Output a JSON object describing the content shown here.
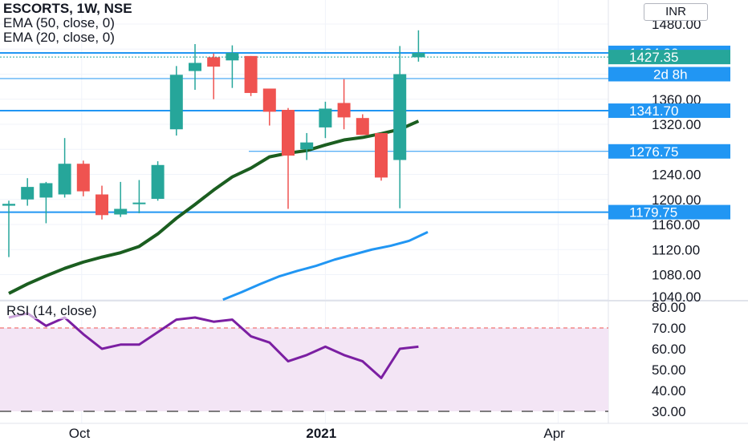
{
  "header": {
    "symbol_line": "ESCORTS, 1W, NSE",
    "ema50_label": "EMA (50, close, 0)",
    "ema20_label": "EMA (20, close, 0)",
    "currency_button": "INR"
  },
  "colors": {
    "up": "#26a69a",
    "down": "#ef5350",
    "ema50": "#2196f3",
    "ema20": "#1b5e20",
    "level": "#2196f3",
    "rsi": "#7b1fa2",
    "rsi_band": "#f3e5f5"
  },
  "chart_data": [
    {
      "type": "candlestick",
      "title": "ESCORTS, 1W, NSE",
      "ylim": [
        1040,
        1500
      ],
      "y_ticks": [
        "1480.00",
        "1360.00",
        "1320.00",
        "1240.00",
        "1200.00",
        "1160.00",
        "1120.00",
        "1080.00"
      ],
      "x_ticks": [
        {
          "label": "Oct",
          "index": 4
        },
        {
          "label": "2021",
          "index": 17
        },
        {
          "label": "Apr",
          "index": 29.5
        }
      ],
      "candles": [
        {
          "o": 1190,
          "h": 1198,
          "l": 1108,
          "c": 1193
        },
        {
          "o": 1200,
          "h": 1234,
          "l": 1190,
          "c": 1220
        },
        {
          "o": 1203,
          "h": 1228,
          "l": 1162,
          "c": 1226
        },
        {
          "o": 1208,
          "h": 1298,
          "l": 1203,
          "c": 1257
        },
        {
          "o": 1257,
          "h": 1262,
          "l": 1205,
          "c": 1213
        },
        {
          "o": 1208,
          "h": 1222,
          "l": 1168,
          "c": 1175
        },
        {
          "o": 1176,
          "h": 1228,
          "l": 1172,
          "c": 1185
        },
        {
          "o": 1193,
          "h": 1231,
          "l": 1178,
          "c": 1195
        },
        {
          "o": 1201,
          "h": 1261,
          "l": 1198,
          "c": 1255
        },
        {
          "o": 1312,
          "h": 1413,
          "l": 1302,
          "c": 1399
        },
        {
          "o": 1405,
          "h": 1448,
          "l": 1375,
          "c": 1418
        },
        {
          "o": 1427,
          "h": 1433,
          "l": 1360,
          "c": 1412
        },
        {
          "o": 1422,
          "h": 1446,
          "l": 1378,
          "c": 1434
        },
        {
          "o": 1429,
          "h": 1429,
          "l": 1365,
          "c": 1370
        },
        {
          "o": 1377,
          "h": 1374,
          "l": 1318,
          "c": 1340
        },
        {
          "o": 1343,
          "h": 1346,
          "l": 1185,
          "c": 1270
        },
        {
          "o": 1280,
          "h": 1306,
          "l": 1263,
          "c": 1291
        },
        {
          "o": 1315,
          "h": 1356,
          "l": 1298,
          "c": 1345
        },
        {
          "o": 1354,
          "h": 1392,
          "l": 1312,
          "c": 1331
        },
        {
          "o": 1330,
          "h": 1336,
          "l": 1304,
          "c": 1303
        },
        {
          "o": 1306,
          "h": 1306,
          "l": 1230,
          "c": 1235
        },
        {
          "o": 1263,
          "h": 1445,
          "l": 1186,
          "c": 1400
        },
        {
          "o": 1427,
          "h": 1470,
          "l": 1420,
          "c": 1434
        }
      ],
      "ema20": [
        1050,
        1065,
        1078,
        1090,
        1100,
        1108,
        1115,
        1125,
        1145,
        1170,
        1192,
        1215,
        1236,
        1250,
        1268,
        1274,
        1278,
        1287,
        1295,
        1299,
        1305,
        1312,
        1325
      ],
      "ema50_start_index": 12,
      "ema50": [
        1040,
        1052,
        1065,
        1077,
        1086,
        1094,
        1104,
        1112,
        1120,
        1126,
        1134,
        1148
      ],
      "levels": [
        {
          "value": 1434.0,
          "label": "1434.00",
          "style": "solid"
        },
        {
          "value": 1427.35,
          "label": "1427.35",
          "style": "last",
          "color": "#26a69a"
        },
        {
          "value": 1341.7,
          "label": "1341.70",
          "style": "solid"
        },
        {
          "value": 1276.75,
          "label": "1276.75",
          "style": "thin"
        },
        {
          "value": 1179.75,
          "label": "1179.75",
          "style": "solid"
        }
      ],
      "countdown_label": "2d 8h"
    },
    {
      "type": "line",
      "title": "RSI (14, close)",
      "ylim": [
        30,
        80
      ],
      "y_ticks": [
        "80.00",
        "70.00",
        "60.00",
        "50.00",
        "40.00",
        "30.00"
      ],
      "band": [
        30,
        70
      ],
      "values": [
        75,
        77,
        71,
        75,
        67,
        60,
        62,
        62,
        68,
        74,
        75,
        73,
        74,
        66,
        63,
        54,
        57,
        61,
        57,
        54,
        46,
        60,
        61
      ]
    }
  ]
}
